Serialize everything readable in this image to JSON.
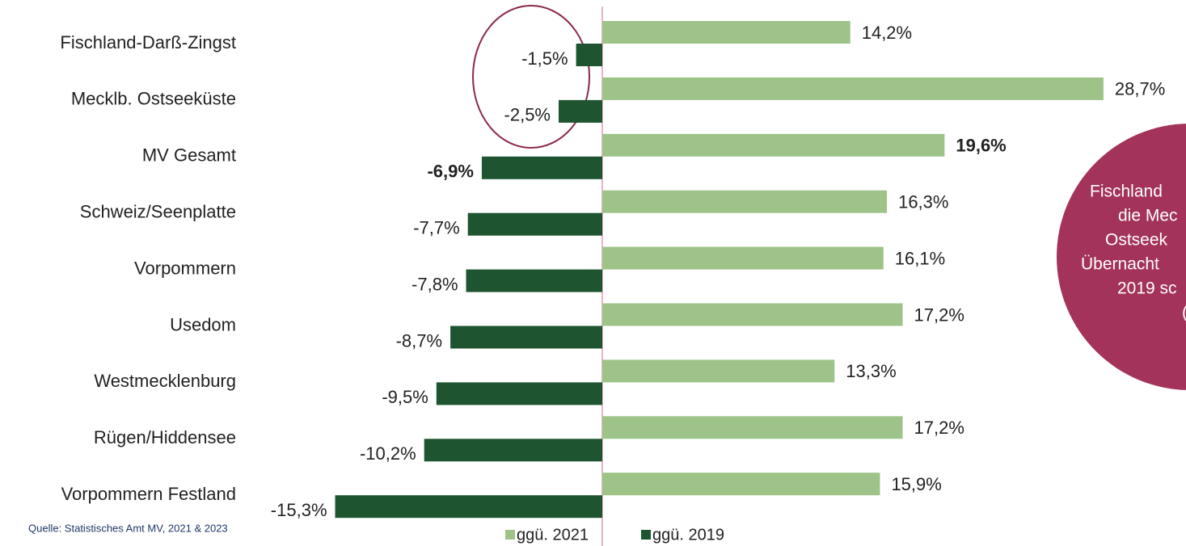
{
  "chart_data": {
    "type": "bar",
    "orientation": "horizontal",
    "categories": [
      "Fischland-Darß-Zingst",
      "Mecklb. Ostseeküste",
      "MV Gesamt",
      "Schweiz/Seenplatte",
      "Vorpommern",
      "Usedom",
      "Westmecklenburg",
      "Rügen/Hiddensee",
      "Vorpommern Festland"
    ],
    "series": [
      {
        "name": "ggü. 2021",
        "color": "#9dc388",
        "values": [
          14.2,
          28.7,
          19.6,
          16.3,
          16.1,
          17.2,
          13.3,
          17.2,
          15.9
        ],
        "value_labels": [
          "14,2%",
          "28,7%",
          "19,6%",
          "16,3%",
          "16,1%",
          "17,2%",
          "13,3%",
          "17,2%",
          "15,9%"
        ]
      },
      {
        "name": "ggü. 2019",
        "color": "#1e5530",
        "values": [
          -1.5,
          -2.5,
          -6.9,
          -7.7,
          -7.8,
          -8.7,
          -9.5,
          -10.2,
          -15.3
        ],
        "value_labels": [
          "-1,5%",
          "-2,5%",
          "-6,9%",
          "-7,7%",
          "-7,8%",
          "-8,7%",
          "-9,5%",
          "-10,2%",
          "-15,3%"
        ]
      }
    ],
    "xlim": [
      -20,
      30
    ],
    "bold_index": 2,
    "source": "Quelle: Statistisches Amt MV, 2021 & 2023",
    "annotation": [
      "Fischland",
      "die Mec",
      "Ostseek",
      "Übernacht",
      "2019 sc",
      "("
    ],
    "annotation_color": "#a3335a"
  }
}
